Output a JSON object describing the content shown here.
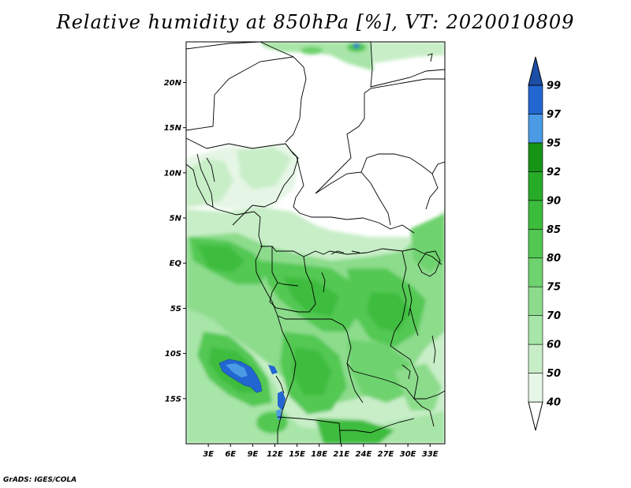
{
  "title": "Relative humidity at 850hPa [%], VT: 2020010809",
  "credit": "GrADS: IGES/COLA",
  "map": {
    "lon_range": [
      0,
      35
    ],
    "lat_range": [
      -20,
      24.5
    ],
    "lon_ticks": [
      "3E",
      "6E",
      "9E",
      "12E",
      "15E",
      "18E",
      "21E",
      "24E",
      "27E",
      "30E",
      "33E"
    ],
    "lat_ticks": [
      "20N",
      "15N",
      "10N",
      "5N",
      "EQ",
      "5S",
      "10S",
      "15S"
    ]
  },
  "colorbar": {
    "levels": [
      "40",
      "50",
      "60",
      "70",
      "75",
      "80",
      "85",
      "90",
      "92",
      "95",
      "97",
      "99"
    ],
    "colors": [
      "#ffffff",
      "#e6f6e6",
      "#c8eec8",
      "#a8e5a8",
      "#8cdc8c",
      "#6ed26e",
      "#52c852",
      "#3cbc3c",
      "#28ac28",
      "#169416",
      "#4a9ae6",
      "#2266d2",
      "#1c4ea8"
    ]
  }
}
